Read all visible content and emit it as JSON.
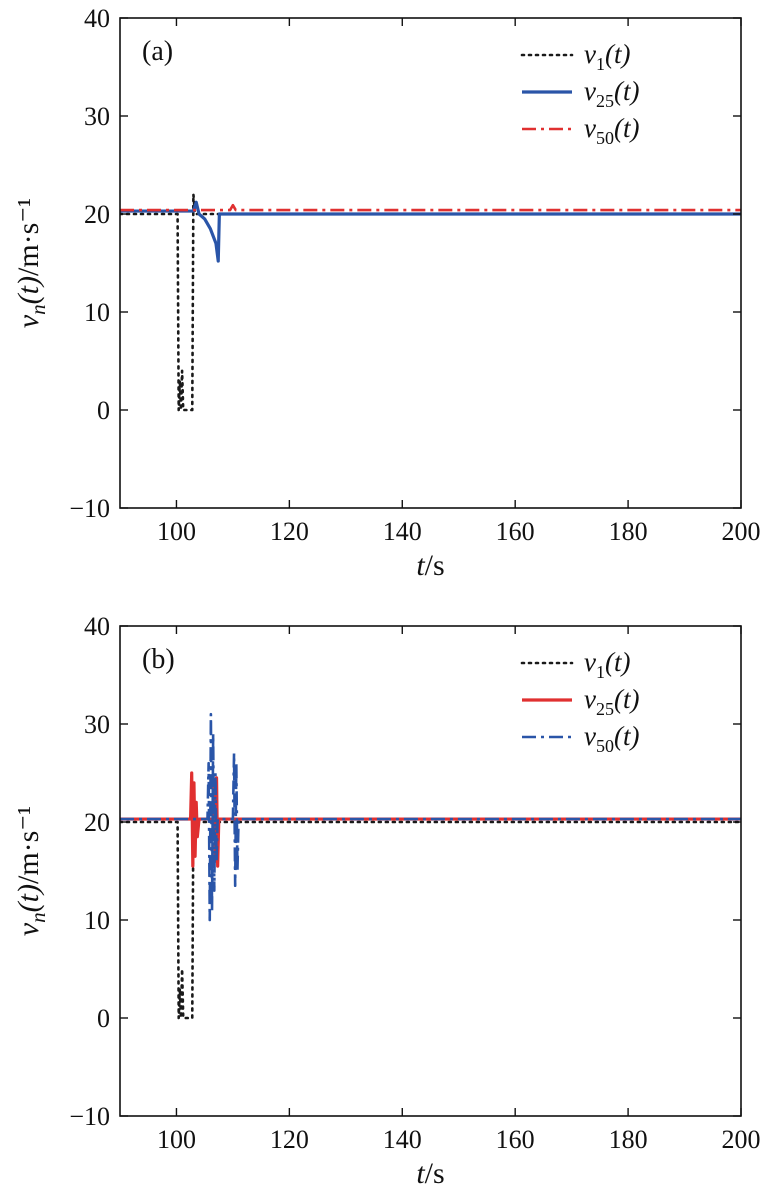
{
  "chart_data": [
    {
      "type": "line",
      "panel_label": "(a)",
      "xlabel": "t/s",
      "ylabel": "v_n(t)/m·s⁻¹",
      "xlim": [
        90,
        200
      ],
      "ylim": [
        -10,
        40
      ],
      "xticks": [
        100,
        120,
        140,
        160,
        180,
        200
      ],
      "yticks": [
        -10,
        0,
        10,
        20,
        30,
        40
      ],
      "legend_position": "top-right",
      "series": [
        {
          "name": "v1(t)",
          "label_base": "v",
          "label_sub": "1",
          "label_arg": "(t)",
          "color": "#1a1a1a",
          "style": "dotted",
          "points": [
            [
              90,
              20
            ],
            [
              100.2,
              20
            ],
            [
              100.4,
              0
            ],
            [
              100.6,
              3
            ],
            [
              100.8,
              0
            ],
            [
              101,
              4
            ],
            [
              101.2,
              0
            ],
            [
              102.8,
              0
            ],
            [
              103,
              22
            ],
            [
              103.3,
              20
            ],
            [
              200,
              20
            ]
          ]
        },
        {
          "name": "v25(t)",
          "label_base": "v",
          "label_sub": "25",
          "label_arg": "(t)",
          "color": "#2a55a8",
          "style": "solid",
          "points": [
            [
              90,
              20.3
            ],
            [
              103,
              20.3
            ],
            [
              103.5,
              21.2
            ],
            [
              104,
              20
            ],
            [
              105,
              19.5
            ],
            [
              106,
              18.5
            ],
            [
              107,
              17
            ],
            [
              107.4,
              15.2
            ],
            [
              107.6,
              20
            ],
            [
              200,
              20
            ]
          ]
        },
        {
          "name": "v50(t)",
          "label_base": "v",
          "label_sub": "50",
          "label_arg": "(t)",
          "color": "#e03030",
          "style": "dashdot",
          "points": [
            [
              90,
              20.4
            ],
            [
              109.5,
              20.4
            ],
            [
              110,
              20.9
            ],
            [
              110.5,
              20.4
            ],
            [
              200,
              20.4
            ]
          ]
        }
      ]
    },
    {
      "type": "line",
      "panel_label": "(b)",
      "xlabel": "t/s",
      "ylabel": "v_n(t)/m·s⁻¹",
      "xlim": [
        90,
        200
      ],
      "ylim": [
        -10,
        40
      ],
      "xticks": [
        100,
        120,
        140,
        160,
        180,
        200
      ],
      "yticks": [
        -10,
        0,
        10,
        20,
        30,
        40
      ],
      "legend_position": "top-right",
      "series": [
        {
          "name": "v1(t)",
          "label_base": "v",
          "label_sub": "1",
          "label_arg": "(t)",
          "color": "#1a1a1a",
          "style": "dotted",
          "points": [
            [
              90,
              20
            ],
            [
              100.2,
              20
            ],
            [
              100.4,
              0
            ],
            [
              100.6,
              3
            ],
            [
              100.8,
              0
            ],
            [
              101,
              5
            ],
            [
              101.2,
              0
            ],
            [
              102.8,
              0
            ],
            [
              103,
              21
            ],
            [
              103.3,
              20
            ],
            [
              200,
              20
            ]
          ]
        },
        {
          "name": "v25(t)",
          "label_base": "v",
          "label_sub": "25",
          "label_arg": "(t)",
          "color": "#e03030",
          "style": "solid",
          "points": [
            [
              90,
              20.3
            ],
            [
              102.5,
              20.3
            ],
            [
              102.7,
              25
            ],
            [
              102.9,
              15.5
            ],
            [
              103.1,
              24
            ],
            [
              103.3,
              16.5
            ],
            [
              103.5,
              22
            ],
            [
              103.7,
              18.5
            ],
            [
              104,
              20.3
            ],
            [
              106.5,
              20.3
            ],
            [
              106.7,
              24
            ],
            [
              106.9,
              16
            ],
            [
              107.1,
              24.5
            ],
            [
              107.3,
              15.5
            ],
            [
              107.5,
              20.3
            ],
            [
              200,
              20.3
            ]
          ]
        },
        {
          "name": "v50(t)",
          "label_base": "v",
          "label_sub": "50",
          "label_arg": "(t)",
          "color": "#2a55a8",
          "style": "dashdot",
          "points": [
            [
              90,
              20.3
            ],
            [
              105.5,
              20.3
            ],
            [
              105.7,
              26
            ],
            [
              105.9,
              10
            ],
            [
              106.1,
              31
            ],
            [
              106.3,
              11
            ],
            [
              106.5,
              29
            ],
            [
              106.7,
              13
            ],
            [
              106.9,
              25
            ],
            [
              107.1,
              16
            ],
            [
              107.3,
              20.3
            ],
            [
              110,
              20.3
            ],
            [
              110.2,
              27
            ],
            [
              110.4,
              13.5
            ],
            [
              110.6,
              26
            ],
            [
              110.8,
              15
            ],
            [
              111,
              20.3
            ],
            [
              200,
              20.3
            ]
          ]
        }
      ]
    }
  ]
}
